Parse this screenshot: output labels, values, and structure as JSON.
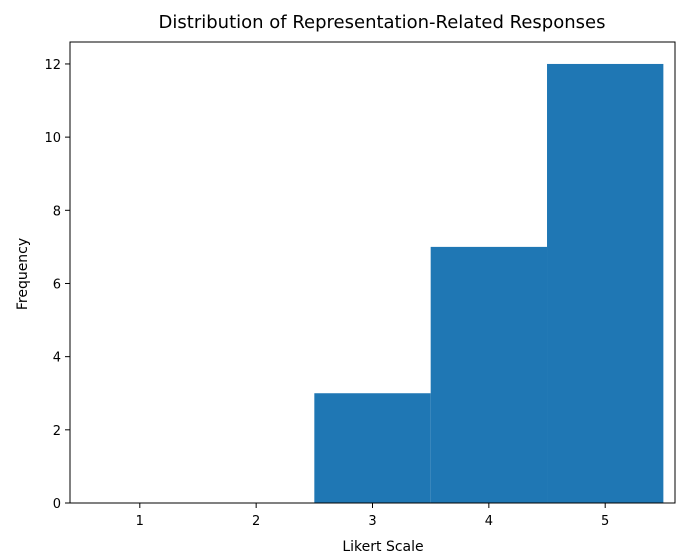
{
  "chart_data": {
    "type": "bar",
    "title": "Distribution of Representation-Related Responses",
    "xlabel": "Likert Scale",
    "ylabel": "Frequency",
    "x_ticks": [
      "1",
      "2",
      "3",
      "4",
      "5"
    ],
    "y_ticks": [
      "0",
      "2",
      "4",
      "6",
      "8",
      "10",
      "12"
    ],
    "xlim": [
      0.4,
      5.6
    ],
    "ylim": [
      0,
      12.6
    ],
    "grid": false,
    "bars": [
      {
        "x_from": 2.5,
        "x_to": 3.5,
        "value": 3
      },
      {
        "x_from": 3.5,
        "x_to": 4.5,
        "value": 7
      },
      {
        "x_from": 4.5,
        "x_to": 5.5,
        "value": 12
      }
    ],
    "colors": {
      "bar": "#1f77b4",
      "axis": "#000000"
    }
  }
}
